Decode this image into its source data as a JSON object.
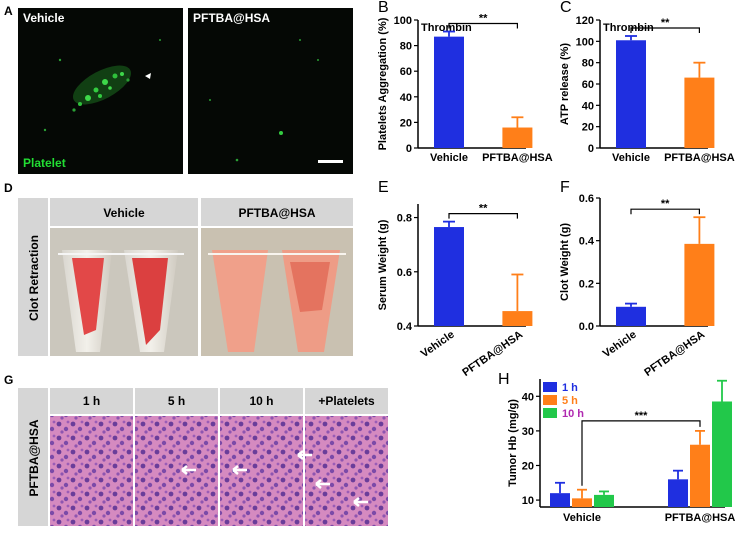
{
  "panels": {
    "A": {
      "letter": "A",
      "left_label": "Vehicle",
      "right_label": "PFTBA@HSA",
      "marker_label": "Platelet"
    },
    "D": {
      "letter": "D",
      "row_label": "Clot Retraction",
      "col1": "Vehicle",
      "col2": "PFTBA@HSA"
    },
    "G": {
      "letter": "G",
      "row_label": "PFTBA@HSA",
      "cols": [
        "1 h",
        "5 h",
        "10 h",
        "+Platelets"
      ]
    }
  },
  "colors": {
    "blue": "#1f2fe0",
    "orange": "#ff7f19",
    "green": "#22c84a",
    "he_pink": "#c96fb0",
    "microscopy_bg": "#0a0a0a",
    "platelet_green": "#22dd33"
  },
  "chart_data": [
    {
      "id": "B",
      "letter": "B",
      "type": "bar",
      "annotation": "Thrombin",
      "ylabel": "Platelets Aggregation (%)",
      "categories": [
        "Vehicle",
        "PFTBA@HSA"
      ],
      "values": [
        87,
        16
      ],
      "errors": [
        4,
        8
      ],
      "colors": [
        "#1f2fe0",
        "#ff7f19"
      ],
      "ylim": [
        0,
        100
      ],
      "yticks": [
        0,
        20,
        40,
        60,
        80,
        100
      ],
      "significance": "**"
    },
    {
      "id": "C",
      "letter": "C",
      "type": "bar",
      "annotation": "Thrombin",
      "ylabel": "ATP release (%)",
      "categories": [
        "Vehicle",
        "PFTBA@HSA"
      ],
      "values": [
        101,
        66
      ],
      "errors": [
        4,
        14
      ],
      "colors": [
        "#1f2fe0",
        "#ff7f19"
      ],
      "ylim": [
        0,
        120
      ],
      "yticks": [
        0,
        20,
        40,
        60,
        80,
        100,
        120
      ],
      "significance": "**"
    },
    {
      "id": "E",
      "letter": "E",
      "type": "bar",
      "ylabel": "Serum Weight (g)",
      "categories": [
        "Vehicle",
        "PFTBA@HSA"
      ],
      "values": [
        0.765,
        0.455
      ],
      "errors": [
        0.02,
        0.135
      ],
      "colors": [
        "#1f2fe0",
        "#ff7f19"
      ],
      "ylim": [
        0.4,
        0.85
      ],
      "yticks": [
        0.4,
        0.6,
        0.8
      ],
      "significance": "**"
    },
    {
      "id": "F",
      "letter": "F",
      "type": "bar",
      "ylabel": "Clot Weight (g)",
      "categories": [
        "Vehicle",
        "PFTBA@HSA"
      ],
      "values": [
        0.09,
        0.385
      ],
      "errors": [
        0.015,
        0.125
      ],
      "colors": [
        "#1f2fe0",
        "#ff7f19"
      ],
      "ylim": [
        0,
        0.6
      ],
      "yticks": [
        0.0,
        0.2,
        0.4,
        0.6
      ],
      "significance": "**"
    },
    {
      "id": "H",
      "letter": "H",
      "type": "bar",
      "ylabel": "Tumor Hb (mg/g)",
      "categories": [
        "Vehicle",
        "PFTBA@HSA"
      ],
      "series": [
        {
          "name": "1 h",
          "values": [
            12,
            16
          ],
          "errors": [
            3,
            2.5
          ],
          "color": "#1f2fe0"
        },
        {
          "name": "5 h",
          "values": [
            10.5,
            26
          ],
          "errors": [
            2.5,
            4
          ],
          "color": "#ff7f19"
        },
        {
          "name": "10 h",
          "values": [
            11.5,
            38.5
          ],
          "errors": [
            1,
            6
          ],
          "color": "#22c84a"
        }
      ],
      "ylim": [
        8,
        45
      ],
      "yticks": [
        10,
        20,
        30,
        40
      ],
      "significance": "***"
    }
  ]
}
